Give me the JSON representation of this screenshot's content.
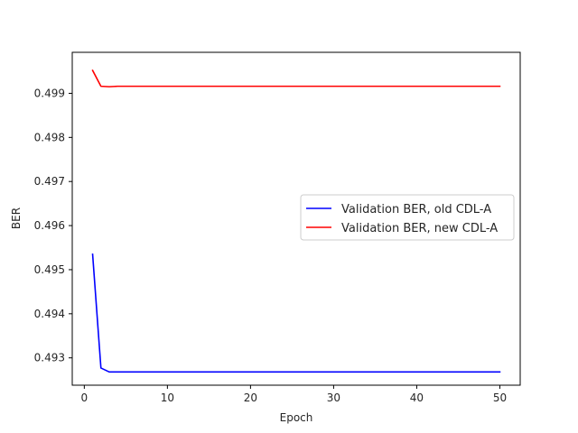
{
  "chart_data": {
    "type": "line",
    "xlabel": "Epoch",
    "ylabel": "BER",
    "xlim": [
      -1.45,
      52.45
    ],
    "ylim": [
      0.49238,
      0.49993
    ],
    "xticks": [
      0,
      10,
      20,
      30,
      40,
      50
    ],
    "yticks": [
      0.493,
      0.494,
      0.495,
      0.496,
      0.497,
      0.498,
      0.499
    ],
    "ytick_decimals": 3,
    "grid": false,
    "legend_position": "center-right",
    "series": [
      {
        "name": "Validation BER, old CDL-A",
        "color": "#0000ff",
        "x": [
          1,
          2,
          3,
          4,
          5,
          10,
          20,
          30,
          40,
          50
        ],
        "y": [
          0.49535,
          0.49277,
          0.49268,
          0.49268,
          0.49268,
          0.49268,
          0.49268,
          0.49268,
          0.49268,
          0.49268
        ]
      },
      {
        "name": "Validation BER, new CDL-A",
        "color": "#ff0000",
        "x": [
          1,
          2,
          3,
          4,
          5,
          10,
          20,
          30,
          40,
          50
        ],
        "y": [
          0.49952,
          0.49916,
          0.49915,
          0.49916,
          0.49916,
          0.49916,
          0.49916,
          0.49916,
          0.49916,
          0.49916
        ]
      }
    ]
  }
}
